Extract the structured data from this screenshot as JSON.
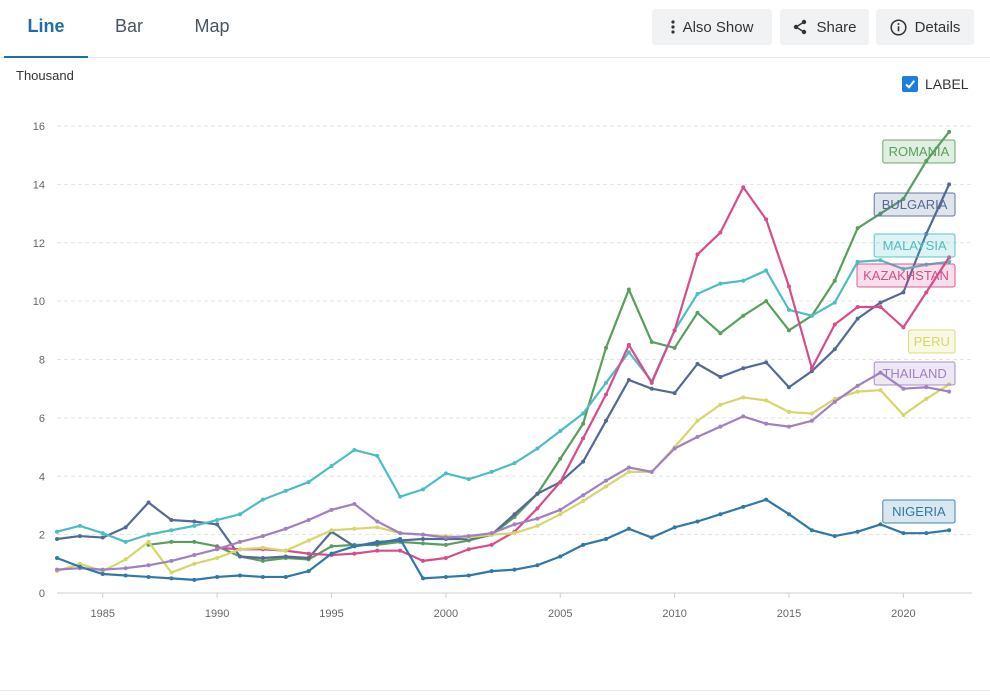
{
  "tabs": [
    {
      "label": "Line",
      "active": true
    },
    {
      "label": "Bar",
      "active": false
    },
    {
      "label": "Map",
      "active": false
    }
  ],
  "buttons": {
    "also_show": {
      "label": "Also Show",
      "icon": "vertical-dots-icon"
    },
    "share": {
      "label": "Share",
      "icon": "share-icon"
    },
    "details": {
      "label": "Details",
      "icon": "info-icon"
    }
  },
  "unit_label": "Thousand",
  "label_toggle": {
    "label": "LABEL",
    "checked": true
  },
  "chart_data": {
    "type": "line",
    "title": "",
    "xlabel": "",
    "ylabel": "Thousand",
    "xlim": [
      1983,
      2023
    ],
    "ylim": [
      0,
      16
    ],
    "x_ticks": [
      1985,
      1990,
      1995,
      2000,
      2005,
      2010,
      2015,
      2020
    ],
    "y_ticks": [
      0,
      2,
      4,
      6,
      8,
      10,
      12,
      14,
      16
    ],
    "grid": "horizontal dashed",
    "x": [
      1983,
      1984,
      1985,
      1986,
      1987,
      1988,
      1989,
      1990,
      1991,
      1992,
      1993,
      1994,
      1995,
      1996,
      1997,
      1998,
      1999,
      2000,
      2001,
      2002,
      2003,
      2004,
      2005,
      2006,
      2007,
      2008,
      2009,
      2010,
      2011,
      2012,
      2013,
      2014,
      2015,
      2016,
      2017,
      2018,
      2019,
      2020,
      2021,
      2022
    ],
    "series": [
      {
        "name": "ROMANIA",
        "color": "#5a9e5e",
        "values": [
          null,
          null,
          null,
          null,
          1.65,
          1.75,
          1.75,
          1.6,
          1.25,
          1.1,
          1.2,
          1.15,
          1.6,
          1.65,
          1.65,
          1.75,
          1.7,
          1.65,
          1.8,
          2.0,
          2.6,
          3.4,
          4.6,
          5.8,
          8.4,
          10.4,
          8.6,
          8.4,
          9.6,
          8.9,
          9.5,
          10.0,
          9.0,
          9.5,
          10.7,
          12.5,
          13.0,
          13.5,
          14.8,
          15.8
        ]
      },
      {
        "name": "BULGARIA",
        "color": "#546a94",
        "values": [
          1.85,
          1.95,
          1.9,
          2.25,
          3.1,
          2.5,
          2.45,
          2.35,
          1.25,
          1.2,
          1.25,
          1.2,
          2.1,
          1.6,
          1.75,
          1.8,
          1.85,
          1.85,
          1.85,
          2.0,
          2.7,
          3.4,
          3.8,
          4.5,
          5.9,
          7.3,
          7.0,
          6.85,
          7.85,
          7.4,
          7.7,
          7.9,
          7.05,
          7.6,
          8.35,
          9.4,
          9.95,
          10.3,
          12.3,
          14.0
        ]
      },
      {
        "name": "MALAYSIA",
        "color": "#4dbdc4",
        "values": [
          2.1,
          2.3,
          2.05,
          1.75,
          2.0,
          2.15,
          2.3,
          2.5,
          2.7,
          3.2,
          3.5,
          3.8,
          4.35,
          4.9,
          4.7,
          3.3,
          3.55,
          4.1,
          3.9,
          4.15,
          4.45,
          4.95,
          5.55,
          6.15,
          7.2,
          8.25,
          7.25,
          9.0,
          10.25,
          10.6,
          10.7,
          11.05,
          9.7,
          9.5,
          9.95,
          11.35,
          11.4,
          11.1,
          11.25,
          11.35
        ]
      },
      {
        "name": "KAZAKHSTAN",
        "color": "#d84c8c",
        "values": [
          null,
          null,
          null,
          null,
          null,
          null,
          null,
          1.55,
          1.5,
          1.5,
          1.45,
          1.35,
          1.3,
          1.35,
          1.45,
          1.45,
          1.1,
          1.2,
          1.5,
          1.65,
          2.1,
          2.9,
          3.8,
          5.3,
          6.8,
          8.5,
          7.2,
          9.0,
          11.6,
          12.35,
          13.9,
          12.8,
          10.5,
          7.7,
          9.2,
          9.8,
          9.8,
          9.1,
          10.3,
          11.5
        ]
      },
      {
        "name": "PERU",
        "color": "#d6d66a",
        "values": [
          0.75,
          1.0,
          0.75,
          1.15,
          1.75,
          0.7,
          1.0,
          1.2,
          1.5,
          1.55,
          1.45,
          1.8,
          2.15,
          2.2,
          2.25,
          2.05,
          2.0,
          1.95,
          1.9,
          2.0,
          2.05,
          2.3,
          2.7,
          3.15,
          3.65,
          4.15,
          4.15,
          5.0,
          5.9,
          6.45,
          6.7,
          6.6,
          6.2,
          6.15,
          6.65,
          6.9,
          6.95,
          6.1,
          6.65,
          7.15
        ]
      },
      {
        "name": "THAILAND",
        "color": "#9f80c2",
        "values": [
          0.8,
          0.85,
          0.8,
          0.85,
          0.95,
          1.1,
          1.3,
          1.5,
          1.75,
          1.95,
          2.2,
          2.5,
          2.85,
          3.05,
          2.45,
          2.05,
          2.0,
          1.9,
          1.95,
          2.05,
          2.35,
          2.55,
          2.85,
          3.35,
          3.85,
          4.3,
          4.15,
          4.95,
          5.35,
          5.7,
          6.05,
          5.8,
          5.7,
          5.9,
          6.55,
          7.1,
          7.55,
          7.0,
          7.05,
          6.9
        ]
      },
      {
        "name": "NIGERIA",
        "color": "#2f78a8",
        "values": [
          1.2,
          0.9,
          0.65,
          0.6,
          0.55,
          0.5,
          0.45,
          0.55,
          0.6,
          0.55,
          0.55,
          0.75,
          1.35,
          1.6,
          1.7,
          1.85,
          0.5,
          0.55,
          0.6,
          0.75,
          0.8,
          0.95,
          1.25,
          1.65,
          1.85,
          2.2,
          1.9,
          2.25,
          2.45,
          2.7,
          2.95,
          3.2,
          2.7,
          2.15,
          1.95,
          2.1,
          2.35,
          2.05,
          2.05,
          2.15
        ]
      }
    ],
    "end_labels": true
  }
}
